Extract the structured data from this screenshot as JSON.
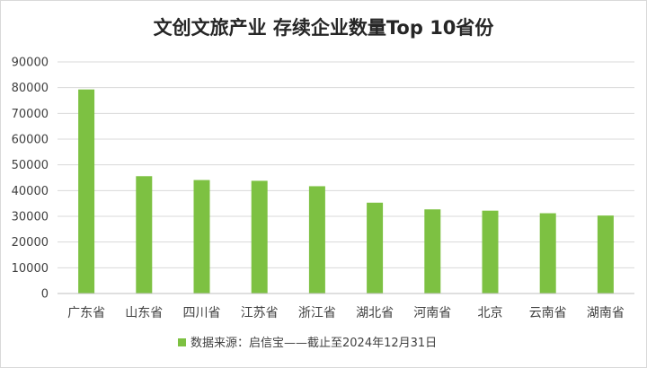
{
  "chart_data": {
    "type": "bar",
    "title": "文创文旅产业 存续企业数量Top 10省份",
    "categories": [
      "广东省",
      "山东省",
      "四川省",
      "江苏省",
      "浙江省",
      "湖北省",
      "河南省",
      "北京",
      "云南省",
      "湖南省"
    ],
    "series": [
      {
        "name": "数据来源：启信宝——截止至2024年12月31日",
        "values": [
          79300,
          45600,
          44100,
          43800,
          41700,
          35300,
          32700,
          32200,
          31200,
          30300
        ]
      }
    ],
    "ylim": [
      0,
      90000
    ],
    "yticks": [
      "0",
      "10000",
      "20000",
      "30000",
      "40000",
      "50000",
      "60000",
      "70000",
      "80000",
      "90000"
    ],
    "grid": true,
    "legend": "bottom",
    "colors": {
      "bar": "#7dc142",
      "grid": "#d9d9d9",
      "text": "#404040"
    }
  }
}
